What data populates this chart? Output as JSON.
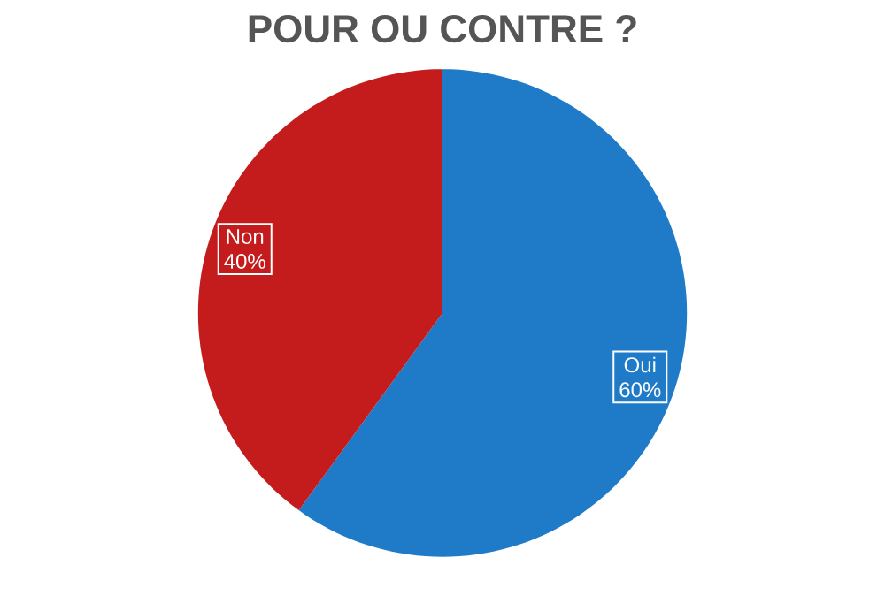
{
  "chart_data": {
    "type": "pie",
    "title": "POUR OU CONTRE ?",
    "categories": [
      "Oui",
      "Non"
    ],
    "values": [
      60,
      40
    ],
    "colors": [
      "#1f7bc8",
      "#c41c1c"
    ],
    "value_labels": [
      "60%",
      "40%"
    ]
  }
}
